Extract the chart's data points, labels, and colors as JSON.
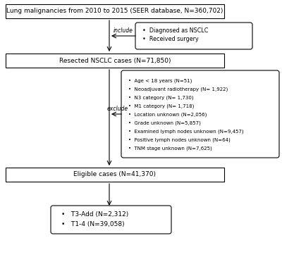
{
  "box1_text": "Lung malignancies from 2010 to 2015 (SEER database, N=360,702)",
  "box2_text": "Resected NSCLC cases (N=71,850)",
  "box3_text": "Eligible cases (N=41,370)",
  "box4_lines": [
    "•   T3-Add (N=2,312)",
    "•   T1-4 (N=39,058)"
  ],
  "include_box_lines": [
    "•  Diagnosed as NSCLC",
    "•  Received surgery"
  ],
  "include_label": "include",
  "exclude_label": "exclude",
  "exclude_box_lines": [
    "•  Age < 18 years (N=51)",
    "•  Neoadjuvant radiotherapy (N= 1,922)",
    "•  N3 category (N= 1,730)",
    "•  M1 category (N= 1,718)",
    "•  Location unknown (N=2,056)",
    "•  Grade unknown (N=5,857)",
    "•  Examined lymph nodes unknown (N=9,457)",
    "•  Positive lymph nodes unknown (N=64)",
    "•  TNM stage unknown (N=7,625)"
  ],
  "bg_color": "#ffffff",
  "box_edge_color": "#000000",
  "text_color": "#000000",
  "arrow_color": "#000000",
  "font_size": 6.5,
  "small_font_size": 5.8,
  "label_font_size": 5.5
}
